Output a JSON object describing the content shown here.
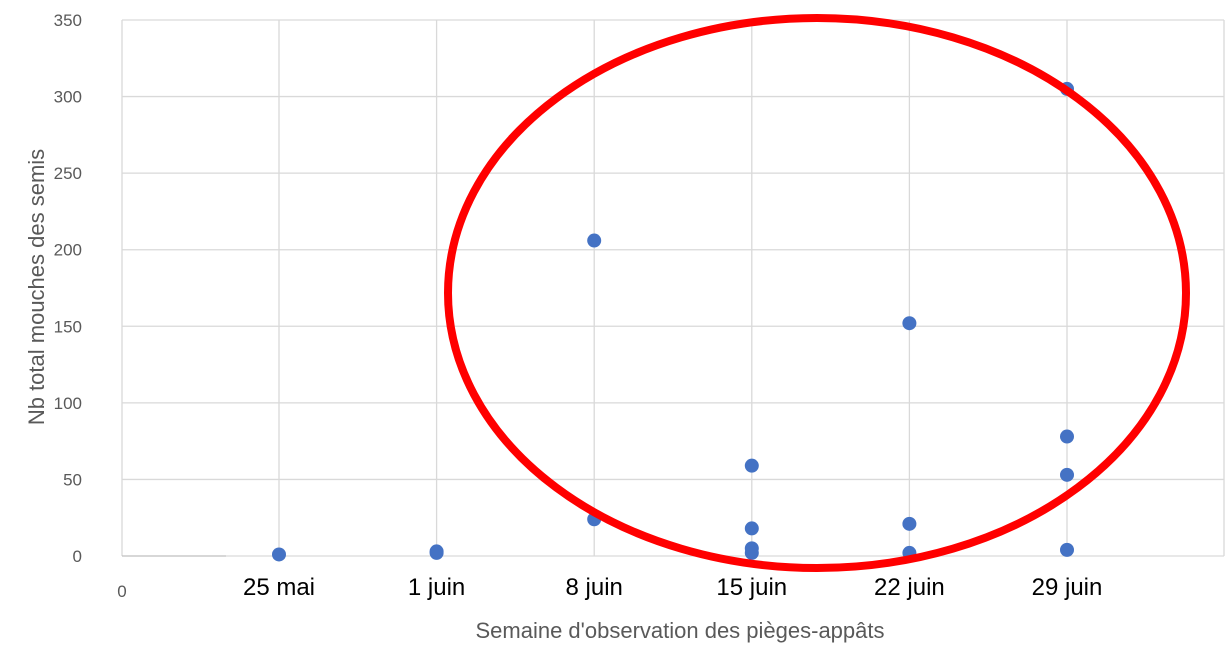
{
  "chart_data": {
    "type": "scatter",
    "xlabel": "Semaine d'observation des pièges-appâts",
    "ylabel": "Nb total mouches des semis",
    "ylim": [
      0,
      350
    ],
    "yticks": [
      0,
      50,
      100,
      150,
      200,
      250,
      300,
      350
    ],
    "x_zero_label": "0",
    "x_categories": [
      "25 mai",
      "1 juin",
      "8 juin",
      "15 juin",
      "22 juin",
      "29 juin"
    ],
    "grid": true,
    "points": [
      {
        "x": "25 mai",
        "y": 1
      },
      {
        "x": "1 juin",
        "y": 3
      },
      {
        "x": "1 juin",
        "y": 2
      },
      {
        "x": "8 juin",
        "y": 206
      },
      {
        "x": "8 juin",
        "y": 24
      },
      {
        "x": "15 juin",
        "y": 59
      },
      {
        "x": "15 juin",
        "y": 18
      },
      {
        "x": "15 juin",
        "y": 5
      },
      {
        "x": "15 juin",
        "y": 2
      },
      {
        "x": "22 juin",
        "y": 152
      },
      {
        "x": "22 juin",
        "y": 21
      },
      {
        "x": "22 juin",
        "y": 2
      },
      {
        "x": "29 juin",
        "y": 305
      },
      {
        "x": "29 juin",
        "y": 78
      },
      {
        "x": "29 juin",
        "y": 53
      },
      {
        "x": "29 juin",
        "y": 4
      }
    ],
    "marker_color": "#4472c4",
    "annotation": {
      "shape": "ellipse",
      "color": "#ff0000"
    }
  }
}
